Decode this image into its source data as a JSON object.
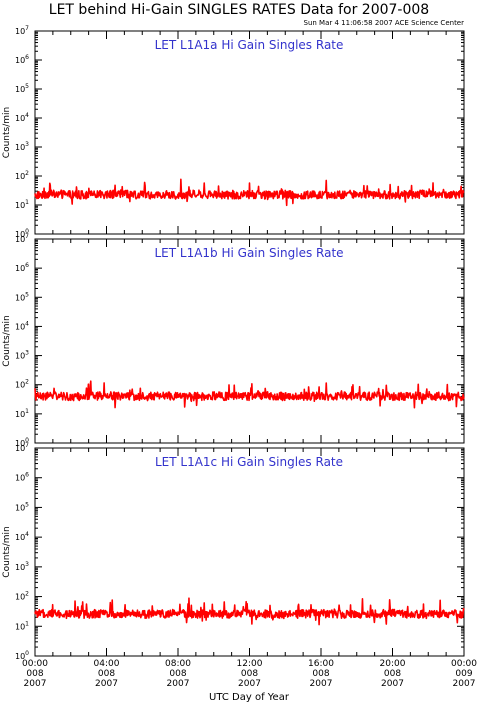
{
  "title": "LET behind Hi-Gain SINGLES RATES Data for 2007-008",
  "timestamp": "Sun Mar  4 11:06:58 2007 ACE Science Center",
  "xlabel": "UTC Day of Year",
  "colors": {
    "trace": "#ff0000",
    "panel_title": "#3333cc",
    "axes": "#000000"
  },
  "x_ticks": [
    {
      "time": "00:00",
      "doy": "008",
      "year": "2007"
    },
    {
      "time": "04:00",
      "doy": "008",
      "year": "2007"
    },
    {
      "time": "08:00",
      "doy": "008",
      "year": "2007"
    },
    {
      "time": "12:00",
      "doy": "008",
      "year": "2007"
    },
    {
      "time": "16:00",
      "doy": "008",
      "year": "2007"
    },
    {
      "time": "20:00",
      "doy": "008",
      "year": "2007"
    },
    {
      "time": "00:00",
      "doy": "009",
      "year": "2007"
    }
  ],
  "y_ticks": [
    "10^0",
    "10^1",
    "10^2",
    "10^3",
    "10^4",
    "10^5",
    "10^6",
    "10^7"
  ],
  "chart_data": [
    {
      "type": "line",
      "title": "LET L1A1a Hi Gain Singles Rate",
      "ylabel": "Counts/min",
      "xlabel": "",
      "yscale": "log",
      "ylim": [
        1,
        10000000
      ],
      "xlim_hours": [
        0,
        24
      ],
      "grid": false,
      "series": [
        {
          "values": [
            {
              "hour": 0,
              "y": 22
            },
            {
              "hour": 1,
              "y": 24
            },
            {
              "hour": 2,
              "y": 23
            },
            {
              "hour": 3,
              "y": 22
            },
            {
              "hour": 4,
              "y": 23
            },
            {
              "hour": 5,
              "y": 24
            },
            {
              "hour": 6,
              "y": 22
            },
            {
              "hour": 7,
              "y": 23
            },
            {
              "hour": 8,
              "y": 22
            },
            {
              "hour": 9,
              "y": 24
            },
            {
              "hour": 10,
              "y": 23
            },
            {
              "hour": 11,
              "y": 22
            },
            {
              "hour": 12,
              "y": 23
            },
            {
              "hour": 13,
              "y": 22
            },
            {
              "hour": 14,
              "y": 24
            },
            {
              "hour": 15,
              "y": 22
            },
            {
              "hour": 16,
              "y": 23
            },
            {
              "hour": 17,
              "y": 22
            },
            {
              "hour": 18,
              "y": 24
            },
            {
              "hour": 19,
              "y": 23
            },
            {
              "hour": 20,
              "y": 22
            },
            {
              "hour": 21,
              "y": 23
            },
            {
              "hour": 22,
              "y": 24
            },
            {
              "hour": 23,
              "y": 22
            },
            {
              "hour": 24,
              "y": 23
            }
          ]
        }
      ]
    },
    {
      "type": "line",
      "title": "LET L1A1b Hi Gain Singles Rate",
      "ylabel": "Counts/min",
      "xlabel": "",
      "yscale": "log",
      "ylim": [
        1,
        10000000
      ],
      "xlim_hours": [
        0,
        24
      ],
      "grid": false,
      "series": [
        {
          "values": [
            {
              "hour": 0,
              "y": 40
            },
            {
              "hour": 1,
              "y": 41
            },
            {
              "hour": 2,
              "y": 39
            },
            {
              "hour": 3,
              "y": 40
            },
            {
              "hour": 4,
              "y": 42
            },
            {
              "hour": 5,
              "y": 40
            },
            {
              "hour": 6,
              "y": 39
            },
            {
              "hour": 7,
              "y": 41
            },
            {
              "hour": 8,
              "y": 40
            },
            {
              "hour": 9,
              "y": 39
            },
            {
              "hour": 10,
              "y": 41
            },
            {
              "hour": 11,
              "y": 40
            },
            {
              "hour": 12,
              "y": 40
            },
            {
              "hour": 13,
              "y": 42
            },
            {
              "hour": 14,
              "y": 39
            },
            {
              "hour": 15,
              "y": 40
            },
            {
              "hour": 16,
              "y": 41
            },
            {
              "hour": 17,
              "y": 40
            },
            {
              "hour": 18,
              "y": 39
            },
            {
              "hour": 19,
              "y": 41
            },
            {
              "hour": 20,
              "y": 40
            },
            {
              "hour": 21,
              "y": 40
            },
            {
              "hour": 22,
              "y": 42
            },
            {
              "hour": 23,
              "y": 39
            },
            {
              "hour": 24,
              "y": 40
            }
          ]
        }
      ]
    },
    {
      "type": "line",
      "title": "LET L1A1c Hi Gain Singles Rate",
      "ylabel": "Counts/min",
      "xlabel": "UTC Day of Year",
      "yscale": "log",
      "ylim": [
        1,
        10000000
      ],
      "xlim_hours": [
        0,
        24
      ],
      "grid": false,
      "series": [
        {
          "values": [
            {
              "hour": 0,
              "y": 26
            },
            {
              "hour": 1,
              "y": 27
            },
            {
              "hour": 2,
              "y": 25
            },
            {
              "hour": 3,
              "y": 26
            },
            {
              "hour": 4,
              "y": 27
            },
            {
              "hour": 5,
              "y": 26
            },
            {
              "hour": 6,
              "y": 25
            },
            {
              "hour": 7,
              "y": 26
            },
            {
              "hour": 8,
              "y": 27
            },
            {
              "hour": 9,
              "y": 26
            },
            {
              "hour": 10,
              "y": 25
            },
            {
              "hour": 11,
              "y": 26
            },
            {
              "hour": 12,
              "y": 27
            },
            {
              "hour": 13,
              "y": 26
            },
            {
              "hour": 14,
              "y": 25
            },
            {
              "hour": 15,
              "y": 26
            },
            {
              "hour": 16,
              "y": 27
            },
            {
              "hour": 17,
              "y": 26
            },
            {
              "hour": 18,
              "y": 25
            },
            {
              "hour": 19,
              "y": 26
            },
            {
              "hour": 20,
              "y": 27
            },
            {
              "hour": 21,
              "y": 26
            },
            {
              "hour": 22,
              "y": 25
            },
            {
              "hour": 23,
              "y": 26
            },
            {
              "hour": 24,
              "y": 26
            }
          ]
        }
      ]
    }
  ]
}
